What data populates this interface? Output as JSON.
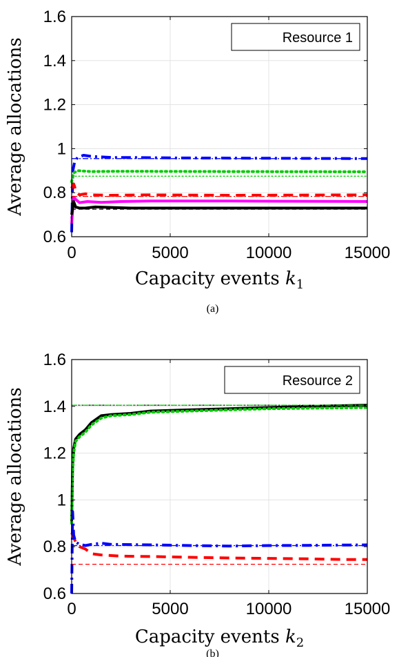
{
  "chart_data": [
    {
      "type": "line",
      "panel": "(a)",
      "legend": "Resource 1",
      "legend_position": "top-right",
      "grid": true,
      "xlabel_text": "Capacity events ",
      "xlabel_var": "k",
      "xlabel_sub": "1",
      "ylabel": "Average allocations",
      "xlim": [
        0,
        15000
      ],
      "ylim": [
        0.6,
        1.6
      ],
      "xticks": [
        "0",
        "5000",
        "10000",
        "15000"
      ],
      "yticks": [
        "0.6",
        "0.8",
        "1",
        "1.2",
        "1.4",
        "1.6"
      ],
      "series": [
        {
          "color": "#0000ff",
          "style": "dashdot",
          "width": 4,
          "x": [
            0,
            60,
            150,
            300,
            600,
            1000,
            2000,
            3000,
            5000,
            8000,
            11000,
            15000
          ],
          "y": [
            0.62,
            0.9,
            0.94,
            0.96,
            0.97,
            0.965,
            0.96,
            0.96,
            0.958,
            0.957,
            0.956,
            0.955
          ]
        },
        {
          "color": "#00cc00",
          "style": "dotted",
          "width": 4,
          "x": [
            0,
            100,
            300,
            600,
            1000,
            2000,
            4000,
            8000,
            15000
          ],
          "y": [
            0.85,
            0.89,
            0.9,
            0.898,
            0.896,
            0.897,
            0.897,
            0.896,
            0.895
          ]
        },
        {
          "color": "#ff0000",
          "style": "dashed",
          "width": 4,
          "x": [
            0,
            100,
            250,
            400,
            700,
            1000,
            2000,
            4000,
            8000,
            15000
          ],
          "y": [
            0.82,
            0.84,
            0.8,
            0.79,
            0.795,
            0.79,
            0.788,
            0.79,
            0.788,
            0.79
          ]
        },
        {
          "color": "#ff00ff",
          "style": "solid",
          "width": 4,
          "x": [
            0,
            100,
            200,
            400,
            800,
            1500,
            2500,
            4000,
            8000,
            15000
          ],
          "y": [
            0.66,
            0.78,
            0.77,
            0.755,
            0.76,
            0.756,
            0.76,
            0.762,
            0.762,
            0.76
          ]
        },
        {
          "color": "#000000",
          "style": "solid",
          "width": 4,
          "x": [
            0,
            100,
            200,
            400,
            700,
            1200,
            2000,
            3000,
            5000,
            8000,
            15000
          ],
          "y": [
            0.7,
            0.76,
            0.735,
            0.73,
            0.73,
            0.735,
            0.733,
            0.73,
            0.73,
            0.73,
            0.73
          ]
        },
        {
          "color": "#0000ff",
          "style": "dashdot",
          "width": 1.3,
          "x": [
            0,
            15000
          ],
          "y": [
            0.955,
            0.955
          ]
        },
        {
          "color": "#00cc00",
          "style": "dotted",
          "width": 1.3,
          "x": [
            0,
            15000
          ],
          "y": [
            0.875,
            0.875
          ]
        },
        {
          "color": "#ff0000",
          "style": "dashdot",
          "width": 1.3,
          "x": [
            0,
            15000
          ],
          "y": [
            0.783,
            0.783
          ]
        },
        {
          "color": "#000000",
          "style": "dashed",
          "width": 1.3,
          "x": [
            0,
            15000
          ],
          "y": [
            0.725,
            0.725
          ]
        }
      ]
    },
    {
      "type": "line",
      "panel": "(b)",
      "legend": "Resource 2",
      "legend_position": "top-right",
      "grid": true,
      "xlabel_text": "Capacity events ",
      "xlabel_var": "k",
      "xlabel_sub": "2",
      "ylabel": "Average allocations",
      "xlim": [
        0,
        15000
      ],
      "ylim": [
        0.6,
        1.6
      ],
      "xticks": [
        "0",
        "5000",
        "10000",
        "15000"
      ],
      "yticks": [
        "0.6",
        "0.8",
        "1",
        "1.2",
        "1.4",
        "1.6"
      ],
      "series": [
        {
          "color": "#000000",
          "style": "solid",
          "width": 4,
          "x": [
            0,
            50,
            100,
            200,
            400,
            700,
            1000,
            1500,
            2000,
            3000,
            4000,
            6000,
            8000,
            10000,
            12000,
            15000
          ],
          "y": [
            0.9,
            1.15,
            1.22,
            1.26,
            1.28,
            1.3,
            1.33,
            1.36,
            1.365,
            1.37,
            1.38,
            1.385,
            1.39,
            1.395,
            1.4,
            1.405
          ]
        },
        {
          "color": "#00cc00",
          "style": "dotted",
          "width": 4,
          "x": [
            0,
            50,
            100,
            200,
            400,
            700,
            1000,
            1500,
            2000,
            3000,
            4000,
            6000,
            8000,
            10000,
            12000,
            15000
          ],
          "y": [
            0.9,
            1.12,
            1.2,
            1.25,
            1.27,
            1.29,
            1.32,
            1.35,
            1.36,
            1.365,
            1.375,
            1.38,
            1.385,
            1.39,
            1.392,
            1.395
          ]
        },
        {
          "color": "#000000",
          "style": "dotted",
          "width": 1.3,
          "x": [
            0,
            15000
          ],
          "y": [
            1.405,
            1.405
          ]
        },
        {
          "color": "#00cc00",
          "style": "dashdot",
          "width": 1.3,
          "x": [
            0,
            15000
          ],
          "y": [
            1.405,
            1.405
          ]
        },
        {
          "color": "#ff0000",
          "style": "dashed",
          "width": 4,
          "x": [
            0,
            100,
            200,
            400,
            700,
            1000,
            1500,
            2500,
            4000,
            6000,
            8000,
            10000,
            12000,
            14000,
            15000
          ],
          "y": [
            0.86,
            0.84,
            0.82,
            0.8,
            0.79,
            0.77,
            0.765,
            0.76,
            0.758,
            0.755,
            0.752,
            0.75,
            0.748,
            0.745,
            0.745
          ]
        },
        {
          "color": "#0000ff",
          "style": "dashdot",
          "width": 4,
          "x": [
            0,
            50,
            100,
            200,
            400,
            700,
            1000,
            1500,
            2000,
            4000,
            6000,
            8000,
            10000,
            12000,
            15000
          ],
          "y": [
            0.6,
            0.95,
            0.85,
            0.82,
            0.81,
            0.805,
            0.81,
            0.815,
            0.81,
            0.808,
            0.805,
            0.803,
            0.805,
            0.806,
            0.808
          ]
        },
        {
          "color": "#0000ff",
          "style": "dashdot",
          "width": 1.3,
          "x": [
            0,
            15000
          ],
          "y": [
            0.805,
            0.805
          ]
        },
        {
          "color": "#ff0000",
          "style": "dashed",
          "width": 1.3,
          "x": [
            0,
            15000
          ],
          "y": [
            0.725,
            0.725
          ]
        }
      ]
    }
  ]
}
